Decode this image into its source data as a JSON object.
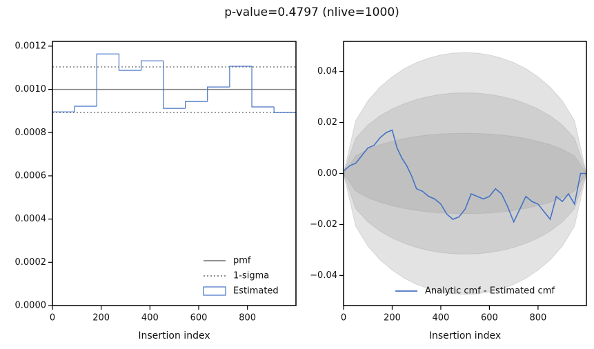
{
  "title": "p-value=0.4797 (nlive=1000)",
  "chart_data": [
    {
      "type": "histogram",
      "xlabel": "Insertion index",
      "bins": [
        0,
        91,
        182,
        273,
        364,
        455,
        545,
        636,
        727,
        818,
        909,
        999
      ],
      "series": [
        {
          "name": "Estimated",
          "color": "#4472c4",
          "values": [
            0.000896,
            0.000922,
            0.001164,
            0.001088,
            0.001132,
            0.000912,
            0.000944,
            0.001011,
            0.001107,
            0.000919,
            0.000893
          ]
        }
      ],
      "hlines": [
        {
          "name": "pmf",
          "color": "#808080",
          "style": "solid",
          "values": [
            0.001
          ]
        },
        {
          "name": "1-sigma",
          "color": "#808080",
          "style": "dotted",
          "values": [
            0.000893,
            0.001104
          ]
        }
      ],
      "xlim": [
        0,
        999
      ],
      "xticks": [
        0,
        200,
        400,
        600,
        800
      ],
      "ylim": [
        0,
        0.001222
      ],
      "yticks": [
        {
          "value": 0,
          "label": "0.0000"
        },
        {
          "value": 0.0002,
          "label": "0.0002"
        },
        {
          "value": 0.0004,
          "label": "0.0004"
        },
        {
          "value": 0.0006,
          "label": "0.0006"
        },
        {
          "value": 0.0008,
          "label": "0.0008"
        },
        {
          "value": 0.001,
          "label": "0.0010"
        },
        {
          "value": 0.0012,
          "label": "0.0012"
        }
      ],
      "legend": "lower right"
    },
    {
      "type": "line",
      "xlabel": "Insertion index",
      "x": [
        0,
        25,
        50,
        75,
        100,
        125,
        150,
        175,
        200,
        220,
        240,
        260,
        280,
        300,
        325,
        350,
        375,
        400,
        425,
        450,
        475,
        500,
        525,
        550,
        575,
        600,
        625,
        650,
        675,
        700,
        725,
        750,
        775,
        800,
        825,
        850,
        875,
        900,
        925,
        950,
        975,
        999
      ],
      "series": [
        {
          "name": "Analytic cmf - Estimated cmf",
          "color": "#4472c4",
          "values": [
            0.001,
            0.003,
            0.004,
            0.007,
            0.01,
            0.011,
            0.014,
            0.016,
            0.017,
            0.01,
            0.006,
            0.003,
            -0.001,
            -0.006,
            -0.007,
            -0.009,
            -0.01,
            -0.012,
            -0.016,
            -0.018,
            -0.017,
            -0.014,
            -0.008,
            -0.009,
            -0.01,
            -0.009,
            -0.006,
            -0.008,
            -0.013,
            -0.019,
            -0.014,
            -0.009,
            -0.011,
            -0.012,
            -0.015,
            -0.018,
            -0.009,
            -0.011,
            -0.008,
            -0.012,
            0.0,
            0.0
          ]
        }
      ],
      "bands": {
        "color": "#9a9a9a",
        "x": [
          0,
          50,
          100,
          150,
          200,
          250,
          300,
          350,
          400,
          450,
          500,
          550,
          600,
          650,
          700,
          750,
          800,
          850,
          900,
          950,
          999
        ],
        "levels": [
          {
            "upper": [
              0.0,
              0.0207,
              0.0285,
              0.0339,
              0.0379,
              0.0411,
              0.0435,
              0.0452,
              0.0465,
              0.0472,
              0.0474,
              0.0472,
              0.0465,
              0.0452,
              0.0435,
              0.0411,
              0.0379,
              0.0339,
              0.0285,
              0.0207,
              0.0
            ],
            "lower": [
              0.0,
              -0.0207,
              -0.0285,
              -0.0339,
              -0.0379,
              -0.0411,
              -0.0435,
              -0.0452,
              -0.0465,
              -0.0472,
              -0.0474,
              -0.0472,
              -0.0465,
              -0.0452,
              -0.0435,
              -0.0411,
              -0.0379,
              -0.0339,
              -0.0285,
              -0.0207,
              0.0
            ]
          },
          {
            "upper": [
              0.0,
              0.0138,
              0.019,
              0.0226,
              0.0253,
              0.0274,
              0.029,
              0.0302,
              0.031,
              0.0315,
              0.0316,
              0.0315,
              0.031,
              0.0302,
              0.029,
              0.0274,
              0.0253,
              0.0226,
              0.019,
              0.0138,
              0.0
            ],
            "lower": [
              0.0,
              -0.0138,
              -0.019,
              -0.0226,
              -0.0253,
              -0.0274,
              -0.029,
              -0.0302,
              -0.031,
              -0.0315,
              -0.0316,
              -0.0315,
              -0.031,
              -0.0302,
              -0.029,
              -0.0274,
              -0.0253,
              -0.0226,
              -0.019,
              -0.0138,
              0.0
            ]
          },
          {
            "upper": [
              0.0,
              0.0069,
              0.0095,
              0.0113,
              0.0126,
              0.0137,
              0.0145,
              0.0151,
              0.0155,
              0.0157,
              0.0158,
              0.0157,
              0.0155,
              0.0151,
              0.0145,
              0.0137,
              0.0126,
              0.0113,
              0.0095,
              0.0069,
              0.0
            ],
            "lower": [
              0.0,
              -0.0069,
              -0.0095,
              -0.0113,
              -0.0126,
              -0.0137,
              -0.0145,
              -0.0151,
              -0.0155,
              -0.0157,
              -0.0158,
              -0.0157,
              -0.0155,
              -0.0151,
              -0.0145,
              -0.0137,
              -0.0126,
              -0.0113,
              -0.0095,
              -0.0069,
              0.0
            ]
          }
        ]
      },
      "xlim": [
        0,
        999
      ],
      "xticks": [
        0,
        200,
        400,
        600,
        800
      ],
      "ylim": [
        -0.0518,
        0.0518
      ],
      "yticks": [
        {
          "value": -0.04,
          "label": "−0.04"
        },
        {
          "value": -0.02,
          "label": "−0.02"
        },
        {
          "value": 0,
          "label": "0.00"
        },
        {
          "value": 0.02,
          "label": "0.02"
        },
        {
          "value": 0.04,
          "label": "0.04"
        }
      ],
      "legend": "lower right"
    }
  ]
}
